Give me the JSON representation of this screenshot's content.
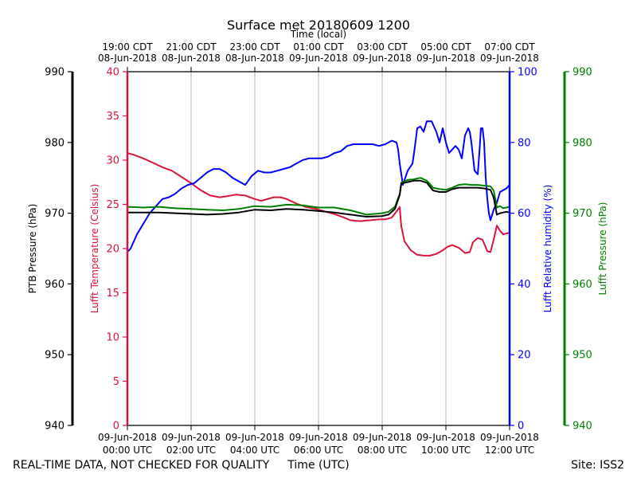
{
  "chart_data": {
    "type": "line",
    "title": "Surface met 20180609 1200",
    "top_axis_label": "Time (local)",
    "xlabel": "Time (UTC)",
    "xlim_hours_utc": [
      0,
      12
    ],
    "x_grid": true,
    "bottom_ticks": [
      {
        "hour": 0,
        "line1": "09-Jun-2018",
        "line2": "00:00 UTC"
      },
      {
        "hour": 2,
        "line1": "09-Jun-2018",
        "line2": "02:00 UTC"
      },
      {
        "hour": 4,
        "line1": "09-Jun-2018",
        "line2": "04:00 UTC"
      },
      {
        "hour": 6,
        "line1": "09-Jun-2018",
        "line2": "06:00 UTC"
      },
      {
        "hour": 8,
        "line1": "09-Jun-2018",
        "line2": "08:00 UTC"
      },
      {
        "hour": 10,
        "line1": "09-Jun-2018",
        "line2": "10:00 UTC"
      },
      {
        "hour": 12,
        "line1": "09-Jun-2018",
        "line2": "12:00 UTC"
      }
    ],
    "top_ticks": [
      {
        "hour": 0,
        "line1": "19:00 CDT",
        "line2": "08-Jun-2018"
      },
      {
        "hour": 2,
        "line1": "21:00 CDT",
        "line2": "08-Jun-2018"
      },
      {
        "hour": 4,
        "line1": "23:00 CDT",
        "line2": "08-Jun-2018"
      },
      {
        "hour": 6,
        "line1": "01:00 CDT",
        "line2": "09-Jun-2018"
      },
      {
        "hour": 8,
        "line1": "03:00 CDT",
        "line2": "09-Jun-2018"
      },
      {
        "hour": 10,
        "line1": "05:00 CDT",
        "line2": "09-Jun-2018"
      },
      {
        "hour": 12,
        "line1": "07:00 CDT",
        "line2": "09-Jun-2018"
      }
    ],
    "axes": {
      "ptb_pressure": {
        "label": "PTB Pressure (hPa)",
        "range": [
          940,
          990
        ],
        "ticks": [
          940,
          950,
          960,
          970,
          980,
          990
        ],
        "color": "#000000"
      },
      "temperature": {
        "label": "Lufft Temperature (Celsius)",
        "range": [
          0,
          40
        ],
        "ticks": [
          0,
          5,
          10,
          15,
          20,
          25,
          30,
          35,
          40
        ],
        "color": "#dc143c"
      },
      "humidity": {
        "label": "Lufft Relative humidity (%)",
        "range": [
          0,
          100
        ],
        "ticks": [
          0,
          20,
          40,
          60,
          80,
          100
        ],
        "color": "#0000ff"
      },
      "lufft_pressure": {
        "label": "Lufft Pressure (hPa)",
        "range": [
          940,
          990
        ],
        "ticks": [
          940,
          950,
          960,
          970,
          980,
          990
        ],
        "color": "#008000"
      }
    },
    "series": [
      {
        "name": "Lufft Temperature",
        "axis": "temperature",
        "color": "#dc143c",
        "x": [
          0,
          0.2,
          0.5,
          0.8,
          1.1,
          1.4,
          1.7,
          2.0,
          2.3,
          2.6,
          2.9,
          3.1,
          3.4,
          3.7,
          4.0,
          4.2,
          4.4,
          4.6,
          4.8,
          5.0,
          5.3,
          5.6,
          5.9,
          6.2,
          6.5,
          6.8,
          7.0,
          7.3,
          7.6,
          7.9,
          8.1,
          8.3,
          8.45,
          8.55,
          8.6,
          8.7,
          8.9,
          9.1,
          9.3,
          9.5,
          9.7,
          9.9,
          10.05,
          10.2,
          10.4,
          10.6,
          10.75,
          10.85,
          11.0,
          11.15,
          11.3,
          11.4,
          11.5,
          11.6,
          11.7,
          11.8,
          11.9,
          12.0
        ],
        "values": [
          30.8,
          30.6,
          30.2,
          29.7,
          29.2,
          28.8,
          28.1,
          27.4,
          26.6,
          26.0,
          25.8,
          25.9,
          26.1,
          26.0,
          25.6,
          25.4,
          25.6,
          25.8,
          25.8,
          25.6,
          25.1,
          24.7,
          24.5,
          24.2,
          23.9,
          23.5,
          23.2,
          23.1,
          23.2,
          23.3,
          23.3,
          23.5,
          24.2,
          24.7,
          22.5,
          20.8,
          19.8,
          19.3,
          19.2,
          19.2,
          19.4,
          19.8,
          20.2,
          20.4,
          20.1,
          19.5,
          19.6,
          20.7,
          21.2,
          21.0,
          19.7,
          19.6,
          21.0,
          22.6,
          22.0,
          21.6,
          21.7,
          21.8
        ]
      },
      {
        "name": "Lufft Relative humidity",
        "axis": "humidity",
        "color": "#0000ff",
        "x": [
          0,
          0.1,
          0.2,
          0.3,
          0.5,
          0.7,
          0.9,
          1.1,
          1.3,
          1.5,
          1.7,
          1.9,
          2.1,
          2.3,
          2.5,
          2.7,
          2.9,
          3.1,
          3.3,
          3.5,
          3.7,
          3.9,
          4.1,
          4.3,
          4.5,
          4.7,
          4.9,
          5.1,
          5.3,
          5.5,
          5.7,
          5.9,
          6.1,
          6.3,
          6.5,
          6.7,
          6.9,
          7.1,
          7.3,
          7.5,
          7.7,
          7.9,
          8.1,
          8.3,
          8.45,
          8.5,
          8.55,
          8.65,
          8.8,
          8.95,
          9.0,
          9.1,
          9.2,
          9.3,
          9.4,
          9.55,
          9.7,
          9.8,
          9.9,
          10.0,
          10.1,
          10.3,
          10.4,
          10.5,
          10.6,
          10.7,
          10.75,
          10.8,
          10.9,
          11.0,
          11.05,
          11.1,
          11.15,
          11.2,
          11.25,
          11.3,
          11.35,
          11.4,
          11.5,
          11.6,
          11.7,
          11.8,
          11.9,
          12.0
        ],
        "values": [
          49,
          50,
          52,
          54,
          57,
          60,
          62,
          64,
          64.5,
          65.5,
          67,
          68,
          68.5,
          70,
          71.5,
          72.5,
          72.5,
          71.5,
          70,
          69,
          68,
          70.5,
          72,
          71.5,
          71.5,
          72,
          72.5,
          73,
          74,
          75,
          75.5,
          75.5,
          75.5,
          76,
          77,
          77.5,
          79,
          79.5,
          79.5,
          79.5,
          79.5,
          79,
          79.5,
          80.5,
          80,
          78,
          74,
          68,
          72,
          74,
          77,
          84,
          84.5,
          83,
          86,
          86,
          83,
          80,
          84,
          80,
          77,
          79,
          78,
          75.5,
          82,
          84,
          83,
          80,
          72,
          71,
          77,
          84,
          84,
          80,
          70,
          64,
          60,
          58,
          61,
          63,
          66,
          66.5,
          67,
          68
        ]
      },
      {
        "name": "Lufft Pressure",
        "axis": "lufft_pressure",
        "color": "#008000",
        "x": [
          0,
          0.5,
          1.0,
          1.5,
          2.0,
          2.5,
          3.0,
          3.5,
          4.0,
          4.5,
          5.0,
          5.5,
          6.0,
          6.5,
          7.0,
          7.5,
          8.0,
          8.2,
          8.4,
          8.55,
          8.6,
          8.8,
          9.0,
          9.2,
          9.4,
          9.6,
          9.8,
          10.0,
          10.2,
          10.4,
          10.6,
          10.8,
          11.0,
          11.2,
          11.4,
          11.5,
          11.6,
          11.7,
          11.8,
          11.9,
          12.0
        ],
        "values": [
          970.9,
          970.8,
          970.9,
          970.7,
          970.6,
          970.5,
          970.4,
          970.6,
          971.0,
          970.9,
          971.2,
          971.1,
          970.8,
          970.8,
          970.4,
          969.8,
          970.0,
          970.2,
          970.9,
          972.7,
          974.3,
          974.7,
          974.8,
          975.0,
          974.6,
          973.6,
          973.4,
          973.3,
          973.6,
          974.0,
          974.1,
          974.0,
          974.0,
          973.9,
          973.8,
          973.2,
          970.8,
          971.0,
          970.7,
          970.8,
          970.9
        ]
      },
      {
        "name": "PTB Pressure",
        "axis": "ptb_pressure",
        "color": "#000000",
        "x": [
          0,
          0.5,
          1.0,
          1.5,
          2.0,
          2.5,
          3.0,
          3.5,
          4.0,
          4.5,
          5.0,
          5.5,
          6.0,
          6.5,
          7.0,
          7.5,
          8.0,
          8.2,
          8.4,
          8.55,
          8.6,
          8.8,
          9.0,
          9.2,
          9.4,
          9.6,
          9.8,
          10.0,
          10.2,
          10.4,
          10.6,
          10.8,
          11.0,
          11.2,
          11.4,
          11.5,
          11.6,
          11.7,
          11.8,
          11.9,
          12.0
        ],
        "values": [
          970.1,
          970.1,
          970.1,
          970.0,
          969.9,
          969.8,
          969.9,
          970.1,
          970.5,
          970.4,
          970.6,
          970.5,
          970.3,
          970.1,
          969.8,
          969.5,
          969.6,
          969.8,
          970.6,
          972.6,
          974.2,
          974.4,
          974.6,
          974.6,
          974.3,
          973.2,
          973.0,
          973.0,
          973.4,
          973.6,
          973.6,
          973.6,
          973.6,
          973.5,
          973.3,
          972.2,
          969.8,
          970.0,
          970.1,
          970.2,
          970.1
        ]
      }
    ]
  },
  "footer": {
    "left": "REAL-TIME DATA, NOT CHECKED FOR QUALITY",
    "right": "Site: ISS2"
  }
}
